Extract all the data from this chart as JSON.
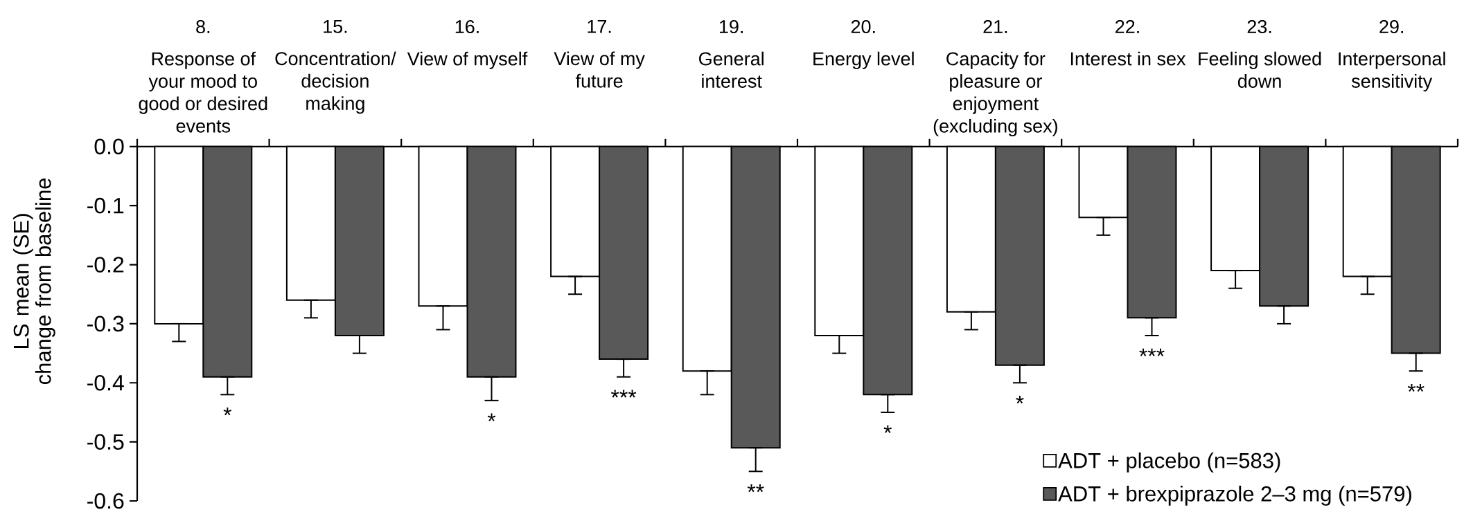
{
  "chart_data": {
    "type": "bar",
    "categories": [
      "8. Response of your mood to good or desired events",
      "15. Concentration/ decision making",
      "16. View of myself",
      "17. View of my future",
      "19. General interest",
      "20. Energy level",
      "21. Capacity for pleasure or enjoyment (excluding sex)",
      "22. Interest in sex",
      "23. Feeling slowed down",
      "29. Interpersonal sensitivity"
    ],
    "ylabel": "LS mean (SE) change from baseline",
    "ylim": [
      -0.6,
      0
    ],
    "yticks": [
      {
        "value": -0.6,
        "label": "-0.6"
      },
      {
        "value": -0.5,
        "label": "-0.5"
      },
      {
        "value": -0.4,
        "label": "-0.4"
      },
      {
        "value": -0.3,
        "label": "-0.3"
      },
      {
        "value": -0.2,
        "label": "-0.2"
      },
      {
        "value": -0.1,
        "label": "-0.1"
      },
      {
        "value": 0,
        "label": "0.0"
      }
    ],
    "legend": "bottom right",
    "series": [
      {
        "name": "ADT + placebo (n=583)",
        "color": "#ffffff",
        "values": [
          -0.3,
          -0.26,
          -0.27,
          -0.22,
          -0.38,
          -0.32,
          -0.28,
          -0.12,
          -0.21,
          -0.22
        ],
        "errors": [
          [
            -0.33,
            -0.3
          ],
          [
            -0.29,
            -0.26
          ],
          [
            -0.31,
            -0.27
          ],
          [
            -0.25,
            -0.22
          ],
          [
            -0.42,
            -0.38
          ],
          [
            -0.35,
            -0.32
          ],
          [
            -0.31,
            -0.28
          ],
          [
            -0.15,
            -0.12
          ],
          [
            -0.24,
            -0.21
          ],
          [
            -0.25,
            -0.22
          ]
        ]
      },
      {
        "name": "ADT + brexpiprazole 2–3 mg (n=579)",
        "color": "#595959",
        "values": [
          -0.39,
          -0.32,
          -0.39,
          -0.36,
          -0.51,
          -0.42,
          -0.37,
          -0.29,
          -0.27,
          -0.35
        ],
        "errors": [
          [
            -0.42,
            -0.39
          ],
          [
            -0.35,
            -0.32
          ],
          [
            -0.43,
            -0.39
          ],
          [
            -0.39,
            -0.36
          ],
          [
            -0.55,
            -0.51
          ],
          [
            -0.45,
            -0.42
          ],
          [
            -0.4,
            -0.37
          ],
          [
            -0.32,
            -0.29
          ],
          [
            -0.3,
            -0.27
          ],
          [
            -0.38,
            -0.35
          ]
        ]
      }
    ],
    "annotations": [
      {
        "text": "*",
        "x": "8. Response of your mood to good or desired events",
        "y": -0.39
      },
      {
        "text": "*",
        "x": "16. View of myself",
        "y": -0.39
      },
      {
        "text": "***",
        "x": "17. View of my future",
        "y": -0.36
      },
      {
        "text": "**",
        "x": "19. General interest",
        "y": -0.51
      },
      {
        "text": "*",
        "x": "20. Energy level",
        "y": -0.42
      },
      {
        "text": "*",
        "x": "21. Capacity for pleasure or enjoyment (excluding sex)",
        "y": -0.37
      },
      {
        "text": "***",
        "x": "22. Interest in sex",
        "y": -0.29
      },
      {
        "text": "**",
        "x": "29. Interpersonal sensitivity",
        "y": -0.35
      }
    ]
  }
}
